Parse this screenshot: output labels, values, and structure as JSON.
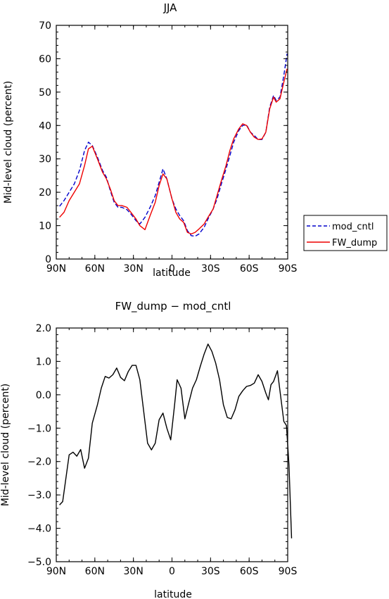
{
  "chart_data": [
    {
      "type": "line",
      "title": "JJA",
      "xlabel": "latitude",
      "ylabel": "Mid-level cloud (percent)",
      "xlim": [
        90,
        -90
      ],
      "ylim": [
        0,
        70
      ],
      "x_ticks": [
        90,
        60,
        30,
        0,
        -30,
        -60,
        -90
      ],
      "x_tick_labels": [
        "90N",
        "60N",
        "30N",
        "0",
        "30S",
        "60S",
        "90S"
      ],
      "y_ticks": [
        0,
        10,
        20,
        30,
        40,
        50,
        60,
        70
      ],
      "y_tick_labels": [
        "0",
        "10",
        "20",
        "30",
        "40",
        "50",
        "60",
        "70"
      ],
      "legend_position": "right",
      "series": [
        {
          "name": "mod_cntl",
          "color": "#0000cc",
          "dash": "dashed",
          "points": [
            [
              87.5,
              15.8
            ],
            [
              84,
              17.5
            ],
            [
              80,
              20
            ],
            [
              76,
              22.5
            ],
            [
              72,
              26.5
            ],
            [
              68,
              32.5
            ],
            [
              65,
              35
            ],
            [
              62,
              34
            ],
            [
              58,
              30.5
            ],
            [
              54,
              26.5
            ],
            [
              51,
              24.5
            ],
            [
              48,
              20.5
            ],
            [
              45,
              17
            ],
            [
              42,
              15.5
            ],
            [
              39,
              15.5
            ],
            [
              35,
              14.8
            ],
            [
              32,
              13.5
            ],
            [
              28,
              11.5
            ],
            [
              25,
              10.5
            ],
            [
              21,
              12.5
            ],
            [
              17,
              15.5
            ],
            [
              13,
              19
            ],
            [
              10,
              23
            ],
            [
              7,
              27
            ],
            [
              4,
              24
            ],
            [
              0,
              18
            ],
            [
              -3,
              15
            ],
            [
              -6,
              13
            ],
            [
              -9,
              11.5
            ],
            [
              -12,
              8.5
            ],
            [
              -15,
              7
            ],
            [
              -18,
              6.8
            ],
            [
              -21,
              7.5
            ],
            [
              -25,
              9.5
            ],
            [
              -28,
              12
            ],
            [
              -32,
              15
            ],
            [
              -35,
              18
            ],
            [
              -38,
              22
            ],
            [
              -42,
              27
            ],
            [
              -45,
              31
            ],
            [
              -48,
              35
            ],
            [
              -52,
              38.5
            ],
            [
              -55,
              40
            ],
            [
              -58,
              40.2
            ],
            [
              -61,
              38
            ],
            [
              -64,
              37
            ],
            [
              -67,
              35.8
            ],
            [
              -70,
              35.8
            ],
            [
              -73,
              38
            ],
            [
              -76,
              45.5
            ],
            [
              -79,
              49
            ],
            [
              -81,
              47.5
            ],
            [
              -84,
              48.5
            ],
            [
              -87,
              55
            ],
            [
              -89.5,
              61.5
            ]
          ]
        },
        {
          "name": "FW_dump",
          "color": "#ee0000",
          "dash": "solid",
          "points": [
            [
              87.5,
              12.5
            ],
            [
              84,
              14
            ],
            [
              80,
              17.5
            ],
            [
              76,
              20
            ],
            [
              72,
              22.5
            ],
            [
              68,
              28
            ],
            [
              65,
              33
            ],
            [
              62,
              33.8
            ],
            [
              58,
              30
            ],
            [
              54,
              26
            ],
            [
              51,
              24
            ],
            [
              48,
              21
            ],
            [
              45,
              17.5
            ],
            [
              42,
              16
            ],
            [
              39,
              16
            ],
            [
              35,
              15.5
            ],
            [
              32,
              14
            ],
            [
              28,
              12
            ],
            [
              25,
              10
            ],
            [
              21,
              8.8
            ],
            [
              17,
              13
            ],
            [
              13,
              17
            ],
            [
              10,
              22
            ],
            [
              7,
              25.5
            ],
            [
              4,
              24
            ],
            [
              0,
              18
            ],
            [
              -3,
              14
            ],
            [
              -6,
              12
            ],
            [
              -9,
              11
            ],
            [
              -12,
              8
            ],
            [
              -15,
              7.5
            ],
            [
              -18,
              8
            ],
            [
              -21,
              9
            ],
            [
              -25,
              10.5
            ],
            [
              -28,
              12.5
            ],
            [
              -32,
              15
            ],
            [
              -35,
              19
            ],
            [
              -38,
              23
            ],
            [
              -42,
              28
            ],
            [
              -45,
              32.5
            ],
            [
              -48,
              36
            ],
            [
              -52,
              39
            ],
            [
              -55,
              40.5
            ],
            [
              -58,
              40
            ],
            [
              -61,
              38
            ],
            [
              -64,
              36.5
            ],
            [
              -67,
              35.8
            ],
            [
              -70,
              36
            ],
            [
              -73,
              38
            ],
            [
              -76,
              45
            ],
            [
              -79,
              48.5
            ],
            [
              -81,
              47
            ],
            [
              -84,
              48
            ],
            [
              -87,
              53
            ],
            [
              -89.5,
              57
            ]
          ]
        }
      ]
    },
    {
      "type": "line",
      "title": "FW_dump − mod_cntl",
      "xlabel": "latitude",
      "ylabel": "Mid-level cloud (percent)",
      "xlim": [
        90,
        -90
      ],
      "ylim": [
        -5,
        2
      ],
      "x_ticks": [
        90,
        60,
        30,
        0,
        -30,
        -60,
        -90
      ],
      "x_tick_labels": [
        "90N",
        "60N",
        "30N",
        "0",
        "30S",
        "60S",
        "90S"
      ],
      "y_ticks": [
        2,
        1,
        0,
        -1,
        -2,
        -3,
        -4,
        -5
      ],
      "y_tick_labels": [
        "2.0",
        "1.0",
        "0.0",
        "−1.0",
        "−2.0",
        "−3.0",
        "−4.0",
        "−5.0"
      ],
      "series": [
        {
          "color": "#000000",
          "dash": "solid",
          "points": [
            [
              87.5,
              -3.3
            ],
            [
              85,
              -3.2
            ],
            [
              80,
              -1.8
            ],
            [
              77,
              -1.72
            ],
            [
              74,
              -1.84
            ],
            [
              71,
              -1.64
            ],
            [
              68,
              -2.2
            ],
            [
              65,
              -1.9
            ],
            [
              62,
              -0.85
            ],
            [
              58,
              -0.3
            ],
            [
              55,
              0.2
            ],
            [
              52,
              0.55
            ],
            [
              49,
              0.5
            ],
            [
              46,
              0.6
            ],
            [
              43,
              0.8
            ],
            [
              40,
              0.52
            ],
            [
              37,
              0.42
            ],
            [
              34,
              0.7
            ],
            [
              31,
              0.88
            ],
            [
              28,
              0.88
            ],
            [
              25,
              0.45
            ],
            [
              22,
              -0.5
            ],
            [
              19,
              -1.45
            ],
            [
              16,
              -1.65
            ],
            [
              13,
              -1.45
            ],
            [
              10,
              -0.75
            ],
            [
              7,
              -0.55
            ],
            [
              4,
              -1.0
            ],
            [
              1,
              -1.35
            ],
            [
              -2,
              -0.3
            ],
            [
              -4,
              0.45
            ],
            [
              -7,
              0.2
            ],
            [
              -10,
              -0.72
            ],
            [
              -13,
              -0.25
            ],
            [
              -16,
              0.2
            ],
            [
              -19,
              0.45
            ],
            [
              -22,
              0.85
            ],
            [
              -25,
              1.22
            ],
            [
              -28,
              1.52
            ],
            [
              -31,
              1.3
            ],
            [
              -34,
              0.95
            ],
            [
              -37,
              0.45
            ],
            [
              -40,
              -0.3
            ],
            [
              -43,
              -0.68
            ],
            [
              -46,
              -0.72
            ],
            [
              -49,
              -0.45
            ],
            [
              -52,
              -0.05
            ],
            [
              -55,
              0.12
            ],
            [
              -58,
              0.25
            ],
            [
              -61,
              0.28
            ],
            [
              -64,
              0.35
            ],
            [
              -67,
              0.6
            ],
            [
              -70,
              0.4
            ],
            [
              -73,
              0.05
            ],
            [
              -75,
              -0.15
            ],
            [
              -77,
              0.3
            ],
            [
              -79,
              0.4
            ],
            [
              -82,
              0.72
            ],
            [
              -85,
              -0.2
            ],
            [
              -87,
              -0.8
            ],
            [
              -89,
              -0.92
            ],
            [
              -91,
              -2.1
            ],
            [
              -93,
              -4.3
            ]
          ]
        }
      ]
    }
  ]
}
